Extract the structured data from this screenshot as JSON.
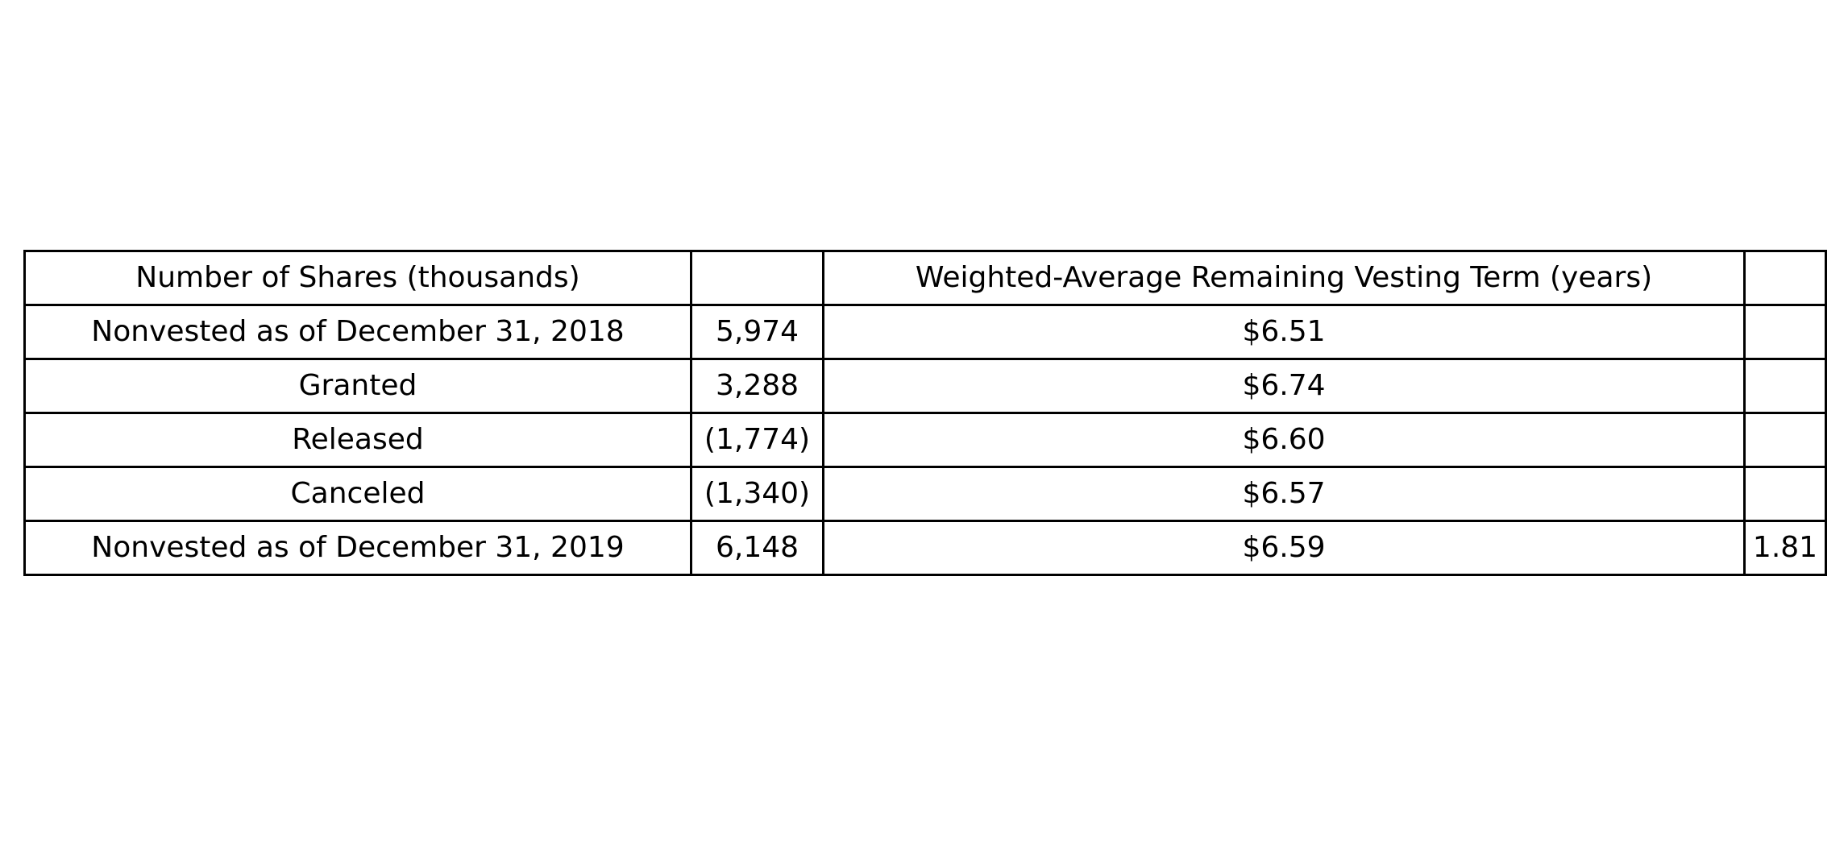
{
  "chart_data": {
    "type": "table",
    "header": [
      "Number of Shares (thousands)",
      "",
      "Weighted-Average Remaining Vesting Term (years)",
      ""
    ],
    "rows": [
      [
        "Nonvested as of December 31, 2018",
        "5,974",
        "$6.51",
        ""
      ],
      [
        "Granted",
        "3,288",
        "$6.74",
        ""
      ],
      [
        "Released",
        "(1,774)",
        "$6.60",
        ""
      ],
      [
        "Canceled",
        "(1,340)",
        "$6.57",
        ""
      ],
      [
        "Nonvested as of December 31, 2019",
        "6,148",
        "$6.59",
        "1.81"
      ]
    ]
  }
}
